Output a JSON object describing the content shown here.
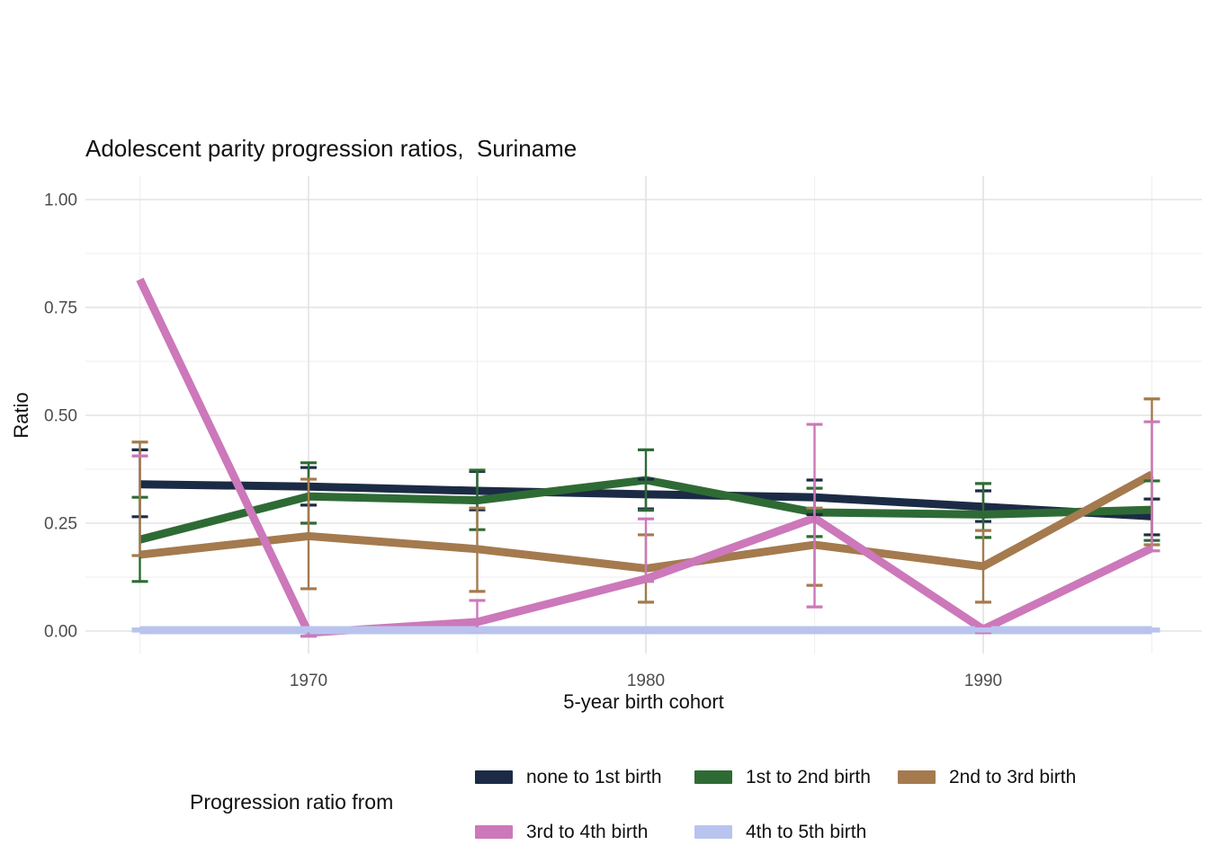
{
  "chart_data": {
    "type": "line",
    "title": "Adolescent parity progression ratios,  Suriname",
    "xlabel": "5-year birth cohort",
    "ylabel": "Ratio",
    "legend_title": "Progression ratio from",
    "legend_position": "bottom",
    "grid": true,
    "background": "#ffffff",
    "grid_major_color": "#e3e3e3",
    "grid_minor_color": "#f0f0f0",
    "tick_label_color": "#4d4d4d",
    "xlim": [
      1963.5,
      1996.5
    ],
    "ylim": [
      -0.05,
      1.05
    ],
    "x": [
      1965,
      1970,
      1975,
      1980,
      1985,
      1990,
      1995
    ],
    "x_ticks": [
      1970,
      1980,
      1990
    ],
    "x_tick_labels": [
      "1970",
      "1980",
      "1990"
    ],
    "x_minor_ticks": [
      1965,
      1975,
      1985,
      1995
    ],
    "y_ticks": [
      0,
      0.25,
      0.5,
      0.75,
      1
    ],
    "y_tick_labels": [
      "0.00",
      "0.25",
      "0.50",
      "0.75",
      "1.00"
    ],
    "y_minor_ticks": [
      0.125,
      0.375,
      0.625,
      0.875
    ],
    "series": [
      {
        "name": "none to 1st birth",
        "color": "#1c2b45",
        "values": [
          0.34,
          0.335,
          0.325,
          0.317,
          0.31,
          0.288,
          0.266
        ],
        "err_lo": [
          0.265,
          0.292,
          0.281,
          0.283,
          0.27,
          0.254,
          0.223
        ],
        "err_hi": [
          0.42,
          0.379,
          0.37,
          0.352,
          0.35,
          0.325,
          0.306
        ]
      },
      {
        "name": "1st to 2nd birth",
        "color": "#2e6b34",
        "values": [
          0.212,
          0.312,
          0.303,
          0.35,
          0.275,
          0.27,
          0.281
        ],
        "err_lo": [
          0.115,
          0.25,
          0.235,
          0.28,
          0.219,
          0.217,
          0.21
        ],
        "err_hi": [
          0.31,
          0.39,
          0.373,
          0.42,
          0.331,
          0.342,
          0.348
        ]
      },
      {
        "name": "2nd to 3rd birth",
        "color": "#a47a4e",
        "values": [
          0.177,
          0.22,
          0.19,
          0.145,
          0.2,
          0.15,
          0.363
        ],
        "err_lo": [
          0.175,
          0.098,
          0.092,
          0.067,
          0.106,
          0.067,
          0.2
        ],
        "err_hi": [
          0.438,
          0.352,
          0.285,
          0.223,
          0.285,
          0.233,
          0.538
        ]
      },
      {
        "name": "3rd to 4th birth",
        "color": "#cc78ba",
        "values": [
          0.815,
          -0.004,
          0.021,
          0.121,
          0.262,
          0.004,
          0.192
        ],
        "err_lo": [
          0.406,
          -0.012,
          0.0,
          0.115,
          0.056,
          -0.004,
          0.186
        ],
        "err_hi": [
          0.406,
          0.004,
          0.071,
          0.26,
          0.479,
          0.012,
          0.485
        ]
      },
      {
        "name": "4th to 5th birth",
        "color": "#b9c4ee",
        "values": [
          0.002,
          0.002,
          0.002,
          0.002,
          0.002,
          0.002,
          0.002
        ],
        "err_lo": [
          0.0,
          0.0,
          0.0,
          0.0,
          0.0,
          0.0,
          0.0
        ],
        "err_hi": [
          0.005,
          0.005,
          0.005,
          0.005,
          0.005,
          0.005,
          0.005
        ]
      }
    ]
  }
}
